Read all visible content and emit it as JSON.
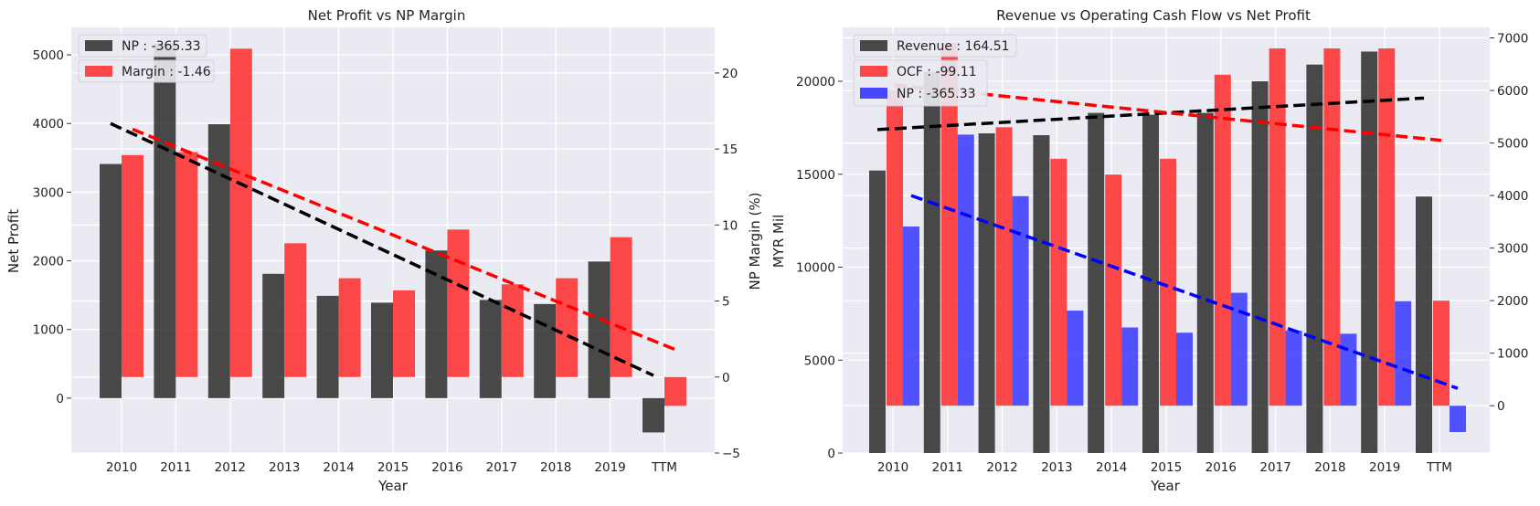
{
  "colors": {
    "background": "#ffffff",
    "panel": "#eaeaf2",
    "grid": "#ffffff",
    "np": "#1a1a1a",
    "margin": "#ff2a2a",
    "revenue": "#1a1a1a",
    "ocf": "#ff2a2a",
    "np_blue": "#2a2aff",
    "trend_black": "#000000",
    "trend_red": "#ff0000",
    "trend_blue": "#0000ff"
  },
  "chart_data": [
    {
      "type": "bar",
      "title": "Net Profit vs NP Margin",
      "xlabel": "Year",
      "ylabel": "Net Profit",
      "ylabel2": "NP Margin (%)",
      "categories": [
        "2010",
        "2011",
        "2012",
        "2013",
        "2014",
        "2015",
        "2016",
        "2017",
        "2018",
        "2019",
        "TTM"
      ],
      "ylim": [
        -800,
        5400
      ],
      "y2lim": [
        -5,
        23
      ],
      "yticks": [
        "0",
        "1000",
        "2000",
        "3000",
        "4000",
        "5000"
      ],
      "y2ticks": [
        "−5",
        "0",
        "5",
        "10",
        "15",
        "20"
      ],
      "legend_position": "top-left",
      "series": [
        {
          "name": "NP : -365.33",
          "axis": "left",
          "values": [
            3410,
            5160,
            3990,
            1810,
            1490,
            1390,
            2150,
            1430,
            1370,
            1990,
            -500
          ]
        },
        {
          "name": "Margin : -1.46",
          "axis": "right",
          "values": [
            14.6,
            14.8,
            21.6,
            8.8,
            6.5,
            5.7,
            9.7,
            6.1,
            6.5,
            9.2,
            -1.9
          ]
        }
      ],
      "trendlines": [
        {
          "series": "NP",
          "axis": "left",
          "start": 4000,
          "end": 330
        },
        {
          "series": "Margin",
          "axis": "right",
          "start": 16.3,
          "end": 1.8
        }
      ]
    },
    {
      "type": "bar",
      "title": "Revenue vs Operating Cash Flow vs Net Profit",
      "xlabel": "Year",
      "ylabel": "MYR Mil",
      "categories": [
        "2010",
        "2011",
        "2012",
        "2013",
        "2014",
        "2015",
        "2016",
        "2017",
        "2018",
        "2019",
        "TTM"
      ],
      "ylim": [
        0,
        22900
      ],
      "y2lim": [
        -900,
        7200
      ],
      "yticks": [
        "0",
        "5000",
        "10000",
        "15000",
        "20000"
      ],
      "y2ticks": [
        "0",
        "1000",
        "2000",
        "3000",
        "4000",
        "5000",
        "6000",
        "7000"
      ],
      "legend_position": "top-left",
      "series": [
        {
          "name": "Revenue : 164.51",
          "axis": "left",
          "values": [
            15200,
            20500,
            17200,
            17100,
            18300,
            18200,
            18300,
            20000,
            20900,
            21600,
            13800
          ]
        },
        {
          "name": "OCF : -99.11",
          "axis": "right",
          "values": [
            6000,
            6900,
            5300,
            4700,
            4400,
            4700,
            6300,
            6800,
            6800,
            6800,
            2000
          ]
        },
        {
          "name": "NP : -365.33",
          "axis": "right",
          "values": [
            3410,
            5160,
            3990,
            1810,
            1490,
            1390,
            2150,
            1430,
            1370,
            1990,
            -500
          ]
        }
      ],
      "trendlines": [
        {
          "series": "Revenue",
          "axis": "left",
          "start": 17400,
          "end": 19100
        },
        {
          "series": "OCF",
          "axis": "right",
          "start": 6100,
          "end": 5050
        },
        {
          "series": "NP",
          "axis": "right",
          "start": 4000,
          "end": 330
        }
      ]
    }
  ]
}
